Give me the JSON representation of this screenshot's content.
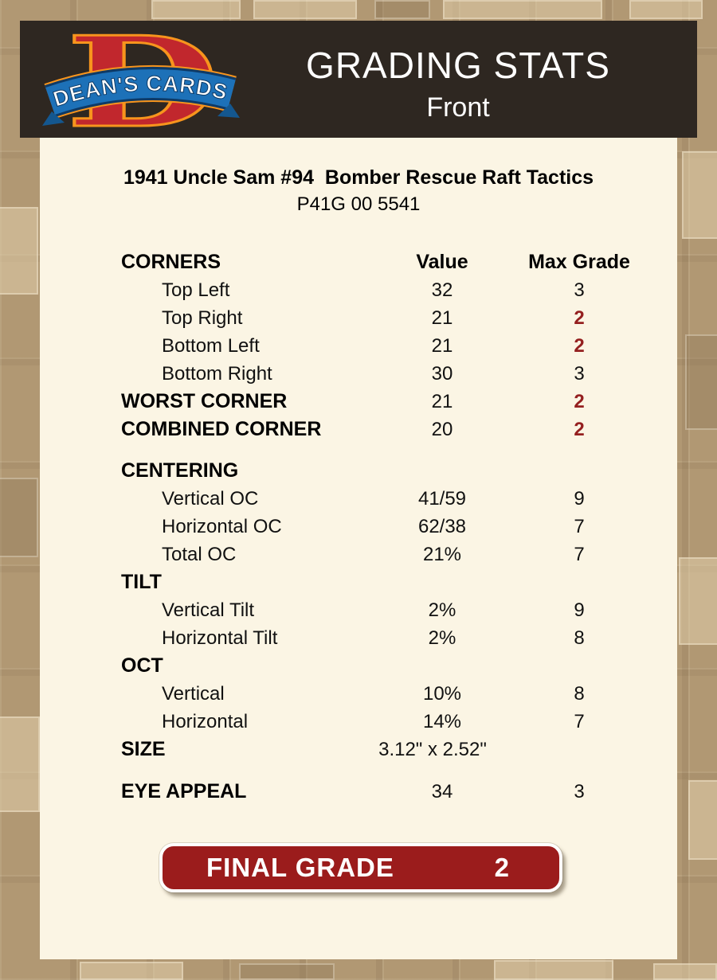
{
  "header": {
    "logo_letter": "D",
    "logo_text": "DEAN'S CARDS",
    "title": "GRADING STATS",
    "subtitle": "Front"
  },
  "card": {
    "title": "1941 Uncle Sam #94  Bomber Rescue Raft Tactics",
    "serial": "P41G 00 5541"
  },
  "table": {
    "columns": {
      "label": "CORNERS",
      "value": "Value",
      "max_grade": "Max Grade"
    },
    "rows": [
      {
        "label": "Top Left",
        "value": "32",
        "grade": "3",
        "indent": true
      },
      {
        "label": "Top Right",
        "value": "21",
        "grade": "2",
        "indent": true,
        "highlight": true
      },
      {
        "label": "Bottom Left",
        "value": "21",
        "grade": "2",
        "indent": true,
        "highlight": true
      },
      {
        "label": "Bottom Right",
        "value": "30",
        "grade": "3",
        "indent": true
      },
      {
        "label": "WORST CORNER",
        "value": "21",
        "grade": "2",
        "bold": true,
        "highlight": true
      },
      {
        "label": "COMBINED CORNER",
        "value": "20",
        "grade": "2",
        "bold": true,
        "highlight": true
      },
      {
        "spacer": 17
      },
      {
        "label": "CENTERING",
        "value": "",
        "grade": "",
        "bold": true
      },
      {
        "label": "Vertical OC",
        "value": "41/59",
        "grade": "9",
        "indent": true
      },
      {
        "label": "Horizontal OC",
        "value": "62/38",
        "grade": "7",
        "indent": true
      },
      {
        "label": "Total OC",
        "value": "21%",
        "grade": "7",
        "indent": true
      },
      {
        "label": "TILT",
        "value": "",
        "grade": "",
        "bold": true
      },
      {
        "label": "Vertical Tilt",
        "value": "2%",
        "grade": "9",
        "indent": true
      },
      {
        "label": "Horizontal Tilt",
        "value": "2%",
        "grade": "8",
        "indent": true
      },
      {
        "label": "OCT",
        "value": "",
        "grade": "",
        "bold": true
      },
      {
        "label": "Vertical",
        "value": "10%",
        "grade": "8",
        "indent": true
      },
      {
        "label": "Horizontal",
        "value": "14%",
        "grade": "7",
        "indent": true
      },
      {
        "label": "SIZE",
        "value": "3.12\" x 2.52\"",
        "grade": "",
        "bold": true,
        "size_row": true
      },
      {
        "spacer": 18
      },
      {
        "label": "EYE APPEAL",
        "value": "34",
        "grade": "3",
        "bold": true
      }
    ]
  },
  "final_grade": {
    "label": "FINAL GRADE",
    "value": "2"
  },
  "colors": {
    "page_bg": "#b19873",
    "header_bg": "#2e2721",
    "panel_bg": "#fbf5e4",
    "accent_red": "#9b1c1c",
    "highlight_red": "#941f1f",
    "logo_red": "#c1272d",
    "logo_gold": "#f7941d",
    "logo_blue": "#1d71b8"
  }
}
